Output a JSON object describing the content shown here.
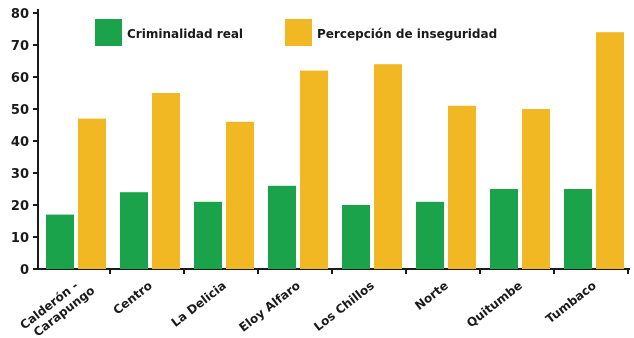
{
  "chart_data": {
    "type": "bar",
    "categories": [
      "Calderón - Carapungo",
      "Centro",
      "La Delicia",
      "Eloy Alfaro",
      "Los Chillos",
      "Norte",
      "Quitumbe",
      "Tumbaco"
    ],
    "series": [
      {
        "name": "Criminalidad real",
        "color": "#1aa34a",
        "values": [
          17,
          24,
          21,
          26,
          20,
          21,
          25,
          25
        ]
      },
      {
        "name": "Percepción de inseguridad",
        "color": "#f2b824",
        "values": [
          47,
          55,
          46,
          62,
          64,
          51,
          50,
          74
        ]
      }
    ],
    "y_ticks": [
      "0",
      "10",
      "20",
      "30",
      "40",
      "50",
      "60",
      "70",
      "80"
    ],
    "ylim": [
      0,
      80
    ],
    "grid": false,
    "legend_position": "top"
  }
}
